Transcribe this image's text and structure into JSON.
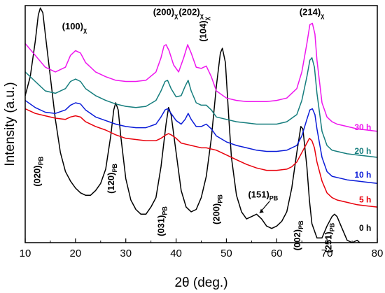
{
  "chart_data": {
    "type": "line",
    "xlabel": "2θ (deg.)",
    "ylabel": "Intensity (a.u.)",
    "xlim": [
      10,
      80
    ],
    "x_ticks": [
      10,
      20,
      30,
      40,
      50,
      60,
      70,
      80
    ],
    "x_tick_labels": [
      "10",
      "20",
      "30",
      "40",
      "50",
      "60",
      "70",
      "80"
    ],
    "ylim": [
      0,
      1
    ],
    "grid": false,
    "series": [
      {
        "name": "0 h",
        "color": "#000000",
        "label_at": [
          78.8,
          0.05
        ],
        "points": [
          [
            10,
            0.62
          ],
          [
            11,
            0.7
          ],
          [
            12,
            0.85
          ],
          [
            12.6,
            0.96
          ],
          [
            13,
            0.99
          ],
          [
            13.5,
            0.97
          ],
          [
            14,
            0.88
          ],
          [
            15,
            0.7
          ],
          [
            16,
            0.52
          ],
          [
            17,
            0.38
          ],
          [
            18,
            0.3
          ],
          [
            19,
            0.26
          ],
          [
            20,
            0.23
          ],
          [
            21,
            0.21
          ],
          [
            22,
            0.2
          ],
          [
            23,
            0.2
          ],
          [
            24,
            0.22
          ],
          [
            25,
            0.25
          ],
          [
            26,
            0.31
          ],
          [
            27,
            0.45
          ],
          [
            27.6,
            0.56
          ],
          [
            28,
            0.59
          ],
          [
            28.5,
            0.56
          ],
          [
            29,
            0.45
          ],
          [
            30,
            0.27
          ],
          [
            31,
            0.18
          ],
          [
            32,
            0.14
          ],
          [
            33,
            0.12
          ],
          [
            34,
            0.12
          ],
          [
            35,
            0.15
          ],
          [
            36,
            0.19
          ],
          [
            37,
            0.32
          ],
          [
            38,
            0.5
          ],
          [
            38.5,
            0.57
          ],
          [
            39,
            0.54
          ],
          [
            40,
            0.38
          ],
          [
            41,
            0.22
          ],
          [
            42,
            0.15
          ],
          [
            43,
            0.13
          ],
          [
            44,
            0.14
          ],
          [
            45,
            0.19
          ],
          [
            46,
            0.28
          ],
          [
            47,
            0.44
          ],
          [
            48,
            0.66
          ],
          [
            48.8,
            0.8
          ],
          [
            49.2,
            0.82
          ],
          [
            49.8,
            0.76
          ],
          [
            50.5,
            0.52
          ],
          [
            51,
            0.36
          ],
          [
            52,
            0.2
          ],
          [
            53,
            0.13
          ],
          [
            54,
            0.1
          ],
          [
            55,
            0.11
          ],
          [
            56,
            0.12
          ],
          [
            57,
            0.1
          ],
          [
            58,
            0.07
          ],
          [
            59,
            0.06
          ],
          [
            60,
            0.07
          ],
          [
            61,
            0.09
          ],
          [
            62,
            0.13
          ],
          [
            63,
            0.23
          ],
          [
            64,
            0.38
          ],
          [
            64.8,
            0.49
          ],
          [
            65.2,
            0.48
          ],
          [
            66,
            0.32
          ],
          [
            66.5,
            0.18
          ],
          [
            67,
            0.08
          ],
          [
            68,
            0.02
          ],
          [
            69,
            0.02
          ],
          [
            70,
            0.07
          ],
          [
            71,
            0.11
          ],
          [
            71.5,
            0.12
          ],
          [
            72,
            0.11
          ],
          [
            73,
            0.06
          ],
          [
            74,
            0.01
          ],
          [
            75,
            0.0
          ],
          [
            76,
            0.01
          ],
          [
            77,
            -0.01
          ],
          [
            78,
            -0.02
          ],
          [
            80,
            -0.02
          ]
        ]
      },
      {
        "name": "5 h",
        "color": "#e8000b",
        "label_at": [
          78.8,
          0.17
        ],
        "points": [
          [
            10,
            0.565
          ],
          [
            12,
            0.545
          ],
          [
            14,
            0.535
          ],
          [
            16,
            0.525
          ],
          [
            18,
            0.52
          ],
          [
            19,
            0.53
          ],
          [
            20,
            0.535
          ],
          [
            21,
            0.53
          ],
          [
            22,
            0.51
          ],
          [
            24,
            0.49
          ],
          [
            26,
            0.475
          ],
          [
            28,
            0.455
          ],
          [
            30,
            0.44
          ],
          [
            32,
            0.435
          ],
          [
            34,
            0.43
          ],
          [
            36,
            0.43
          ],
          [
            37,
            0.44
          ],
          [
            38,
            0.455
          ],
          [
            38.5,
            0.46
          ],
          [
            39,
            0.455
          ],
          [
            40,
            0.44
          ],
          [
            41,
            0.42
          ],
          [
            42,
            0.415
          ],
          [
            43,
            0.41
          ],
          [
            44,
            0.405
          ],
          [
            45,
            0.4
          ],
          [
            46,
            0.4
          ],
          [
            48,
            0.39
          ],
          [
            50,
            0.37
          ],
          [
            52,
            0.35
          ],
          [
            54,
            0.33
          ],
          [
            56,
            0.315
          ],
          [
            58,
            0.305
          ],
          [
            60,
            0.305
          ],
          [
            62,
            0.31
          ],
          [
            63,
            0.32
          ],
          [
            64,
            0.34
          ],
          [
            65,
            0.38
          ],
          [
            66,
            0.42
          ],
          [
            66.5,
            0.44
          ],
          [
            67,
            0.43
          ],
          [
            67.5,
            0.4
          ],
          [
            68,
            0.34
          ],
          [
            69,
            0.26
          ],
          [
            70,
            0.21
          ],
          [
            71,
            0.19
          ],
          [
            72,
            0.18
          ],
          [
            74,
            0.17
          ],
          [
            76,
            0.16
          ],
          [
            78,
            0.155
          ],
          [
            80,
            0.15
          ]
        ]
      },
      {
        "name": "10 h",
        "color": "#0a1bd8",
        "label_at": [
          78.8,
          0.275
        ],
        "points": [
          [
            10,
            0.6
          ],
          [
            12,
            0.57
          ],
          [
            14,
            0.55
          ],
          [
            16,
            0.545
          ],
          [
            18,
            0.56
          ],
          [
            19,
            0.58
          ],
          [
            20,
            0.59
          ],
          [
            21,
            0.585
          ],
          [
            22,
            0.56
          ],
          [
            24,
            0.53
          ],
          [
            26,
            0.515
          ],
          [
            28,
            0.5
          ],
          [
            30,
            0.49
          ],
          [
            32,
            0.485
          ],
          [
            34,
            0.485
          ],
          [
            36,
            0.5
          ],
          [
            37,
            0.53
          ],
          [
            37.8,
            0.56
          ],
          [
            38.3,
            0.565
          ],
          [
            39,
            0.545
          ],
          [
            40,
            0.515
          ],
          [
            41,
            0.5
          ],
          [
            41.8,
            0.52
          ],
          [
            42.4,
            0.545
          ],
          [
            43,
            0.52
          ],
          [
            44,
            0.49
          ],
          [
            45,
            0.49
          ],
          [
            46,
            0.5
          ],
          [
            47,
            0.48
          ],
          [
            48,
            0.45
          ],
          [
            50,
            0.425
          ],
          [
            52,
            0.41
          ],
          [
            54,
            0.4
          ],
          [
            56,
            0.39
          ],
          [
            58,
            0.385
          ],
          [
            60,
            0.385
          ],
          [
            62,
            0.39
          ],
          [
            64,
            0.41
          ],
          [
            65,
            0.45
          ],
          [
            66,
            0.52
          ],
          [
            66.6,
            0.56
          ],
          [
            67.1,
            0.565
          ],
          [
            67.6,
            0.54
          ],
          [
            68,
            0.48
          ],
          [
            69,
            0.36
          ],
          [
            70,
            0.3
          ],
          [
            71,
            0.28
          ],
          [
            72,
            0.275
          ],
          [
            74,
            0.265
          ],
          [
            76,
            0.26
          ],
          [
            78,
            0.255
          ],
          [
            80,
            0.25
          ]
        ]
      },
      {
        "name": "20 h",
        "color": "#157d7d",
        "label_at": [
          78.8,
          0.375
        ],
        "points": [
          [
            10,
            0.72
          ],
          [
            12,
            0.68
          ],
          [
            14,
            0.64
          ],
          [
            16,
            0.63
          ],
          [
            18,
            0.65
          ],
          [
            19,
            0.68
          ],
          [
            20,
            0.69
          ],
          [
            21,
            0.68
          ],
          [
            22,
            0.65
          ],
          [
            24,
            0.62
          ],
          [
            26,
            0.6
          ],
          [
            28,
            0.585
          ],
          [
            30,
            0.575
          ],
          [
            32,
            0.57
          ],
          [
            34,
            0.575
          ],
          [
            36,
            0.6
          ],
          [
            37,
            0.64
          ],
          [
            37.8,
            0.68
          ],
          [
            38.3,
            0.685
          ],
          [
            39,
            0.65
          ],
          [
            40,
            0.615
          ],
          [
            41,
            0.62
          ],
          [
            41.8,
            0.66
          ],
          [
            42.4,
            0.685
          ],
          [
            43,
            0.64
          ],
          [
            44,
            0.59
          ],
          [
            45,
            0.58
          ],
          [
            46,
            0.58
          ],
          [
            47,
            0.56
          ],
          [
            48,
            0.53
          ],
          [
            50,
            0.52
          ],
          [
            52,
            0.51
          ],
          [
            54,
            0.505
          ],
          [
            56,
            0.5
          ],
          [
            58,
            0.5
          ],
          [
            60,
            0.5
          ],
          [
            62,
            0.51
          ],
          [
            64,
            0.54
          ],
          [
            65,
            0.6
          ],
          [
            66,
            0.7
          ],
          [
            66.6,
            0.77
          ],
          [
            67,
            0.78
          ],
          [
            67.5,
            0.74
          ],
          [
            68,
            0.63
          ],
          [
            69,
            0.47
          ],
          [
            70,
            0.41
          ],
          [
            71,
            0.39
          ],
          [
            72,
            0.385
          ],
          [
            74,
            0.375
          ],
          [
            76,
            0.37
          ],
          [
            78,
            0.365
          ],
          [
            80,
            0.36
          ]
        ]
      },
      {
        "name": "30 h",
        "color": "#ee16ee",
        "label_at": [
          78.8,
          0.475
        ],
        "points": [
          [
            10,
            0.84
          ],
          [
            12,
            0.79
          ],
          [
            14,
            0.74
          ],
          [
            16,
            0.72
          ],
          [
            18,
            0.74
          ],
          [
            19,
            0.79
          ],
          [
            20,
            0.81
          ],
          [
            21,
            0.8
          ],
          [
            22,
            0.76
          ],
          [
            24,
            0.72
          ],
          [
            26,
            0.7
          ],
          [
            28,
            0.685
          ],
          [
            30,
            0.68
          ],
          [
            32,
            0.68
          ],
          [
            34,
            0.685
          ],
          [
            36,
            0.72
          ],
          [
            37,
            0.78
          ],
          [
            37.6,
            0.83
          ],
          [
            38,
            0.835
          ],
          [
            38.6,
            0.81
          ],
          [
            39.5,
            0.75
          ],
          [
            40.5,
            0.72
          ],
          [
            41.5,
            0.78
          ],
          [
            42.3,
            0.835
          ],
          [
            43,
            0.8
          ],
          [
            44,
            0.74
          ],
          [
            45,
            0.735
          ],
          [
            46,
            0.745
          ],
          [
            47,
            0.7
          ],
          [
            48,
            0.64
          ],
          [
            50,
            0.61
          ],
          [
            52,
            0.6
          ],
          [
            54,
            0.595
          ],
          [
            56,
            0.595
          ],
          [
            58,
            0.595
          ],
          [
            60,
            0.6
          ],
          [
            62,
            0.61
          ],
          [
            64,
            0.65
          ],
          [
            65,
            0.72
          ],
          [
            66,
            0.84
          ],
          [
            66.6,
            0.92
          ],
          [
            67.1,
            0.925
          ],
          [
            67.6,
            0.88
          ],
          [
            68,
            0.77
          ],
          [
            69,
            0.59
          ],
          [
            70,
            0.53
          ],
          [
            71,
            0.51
          ],
          [
            72,
            0.5
          ],
          [
            74,
            0.49
          ],
          [
            76,
            0.48
          ],
          [
            78,
            0.475
          ],
          [
            80,
            0.47
          ]
        ]
      }
    ],
    "annotations": [
      {
        "text": "(020)",
        "sub": "PB",
        "x": 13.0,
        "y": 0.3,
        "rotate": true
      },
      {
        "text": "(120)",
        "sub": "PB",
        "x": 27.7,
        "y": 0.27,
        "rotate": true
      },
      {
        "text": "(031)",
        "sub": "PB",
        "x": 37.6,
        "y": 0.09,
        "rotate": true
      },
      {
        "text": "(200)",
        "sub": "PB",
        "x": 48.6,
        "y": 0.14,
        "rotate": true
      },
      {
        "text": "(151)",
        "sub": "PB",
        "x": 57.3,
        "y": 0.19,
        "rotate": false
      },
      {
        "text": "(002)",
        "sub": "PB",
        "x": 64.7,
        "y": 0.03,
        "rotate": true
      },
      {
        "text": "(251)",
        "sub": "PB",
        "x": 70.9,
        "y": 0.02,
        "rotate": true
      },
      {
        "text": "(100)",
        "sub": "χ",
        "x": 19.8,
        "y": 0.9,
        "rotate": false
      },
      {
        "text": "(200)",
        "sub": "χ",
        "x": 37.9,
        "y": 0.96,
        "rotate": false
      },
      {
        "text": "(202)",
        "sub": "χ",
        "x": 43.0,
        "y": 0.96,
        "rotate": false
      },
      {
        "text": "(104)",
        "sub": "χ",
        "x": 46.0,
        "y": 0.9,
        "rotate": true
      },
      {
        "text": "(214)",
        "sub": "χ",
        "x": 67.0,
        "y": 0.96,
        "rotate": false
      }
    ]
  }
}
